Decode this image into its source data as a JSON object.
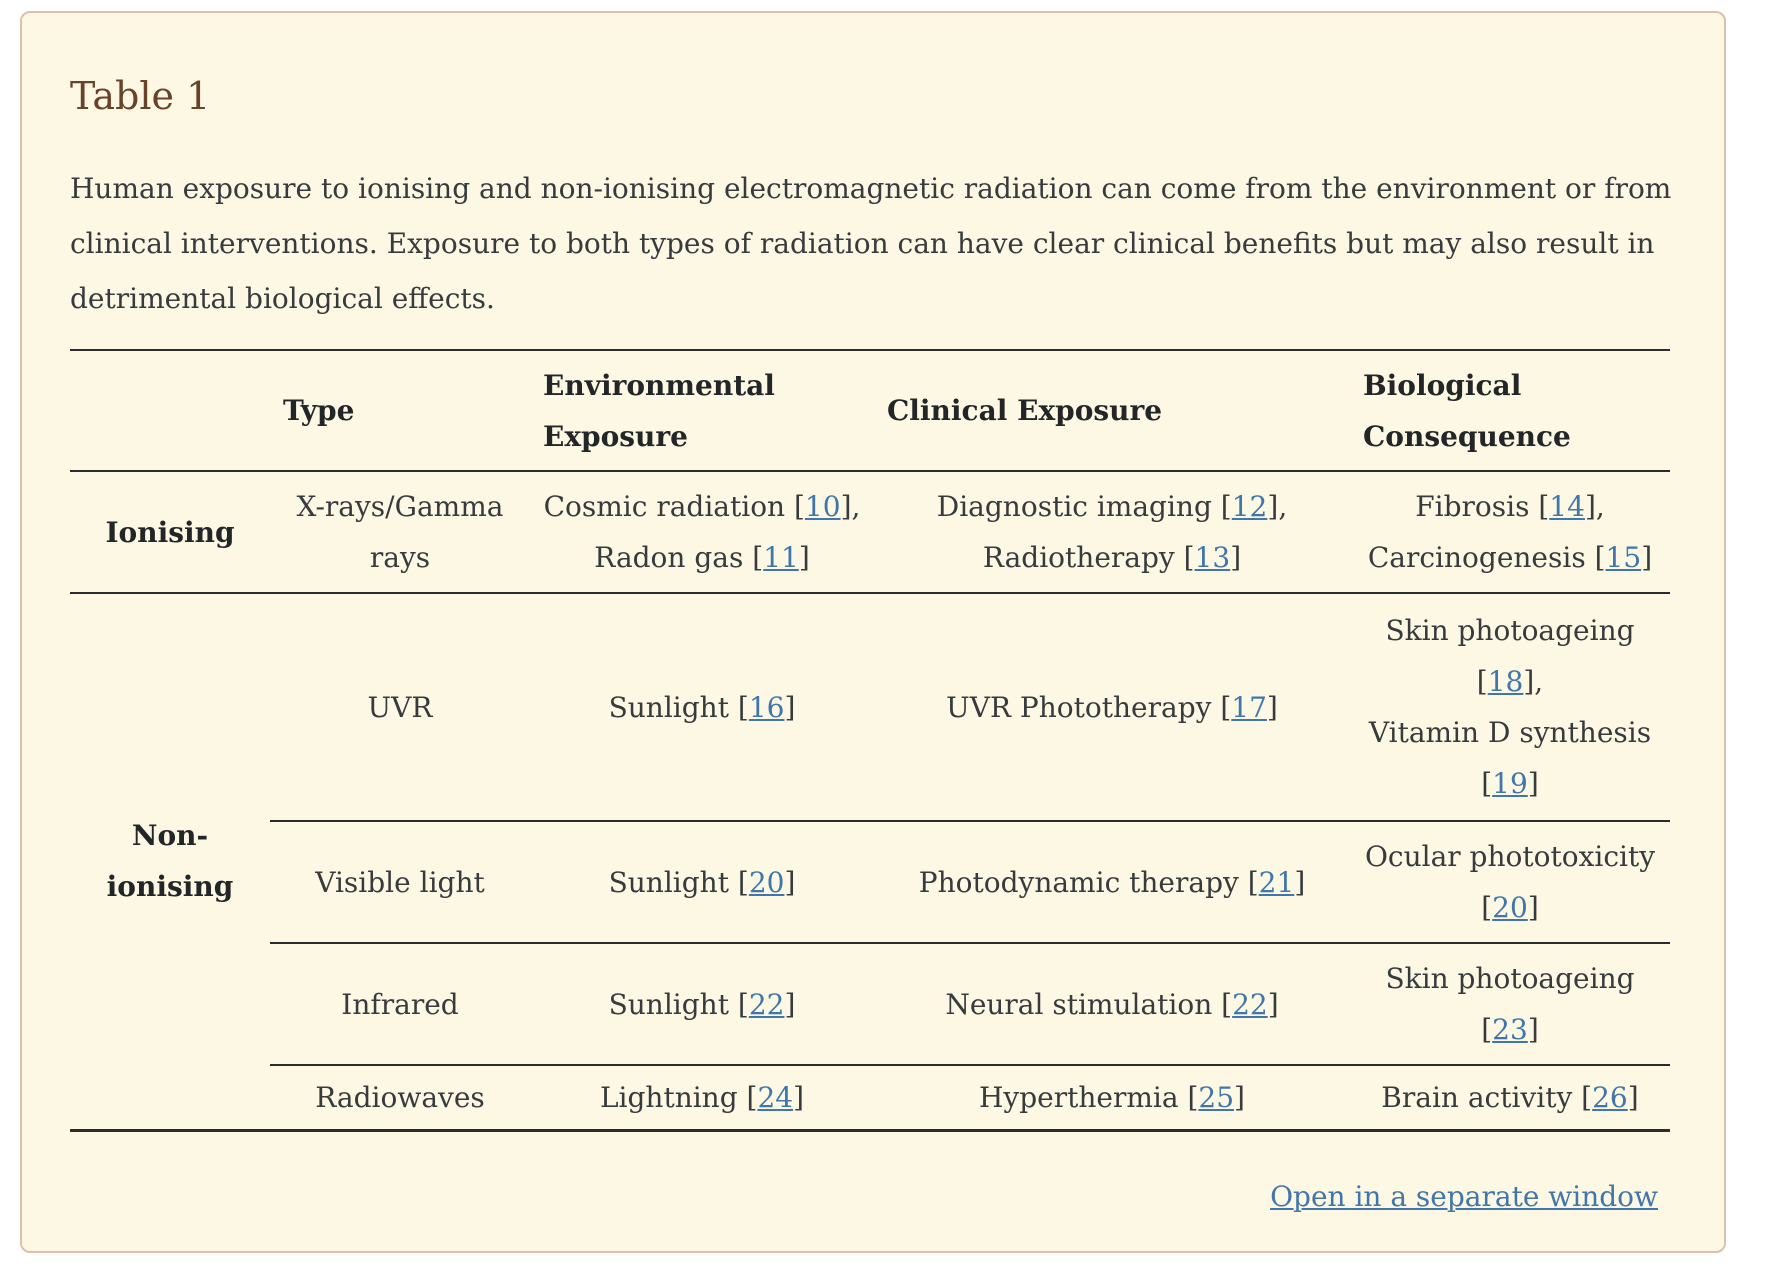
{
  "panel": {
    "title": "Table 1",
    "caption_lines": [
      "Human exposure to ionising and non-ionising electromagnetic radiation can come from the environment or from",
      "clinical interventions. Exposure to both types of radiation can have clear clinical benefits but may also result in",
      "detrimental biological effects."
    ],
    "open_link": "Open in a separate window"
  },
  "table": {
    "columns": [
      {
        "id": "row-group",
        "lines": [
          ""
        ]
      },
      {
        "id": "type",
        "lines": [
          "Type"
        ]
      },
      {
        "id": "environmental-exposure",
        "lines": [
          "Environmental",
          "Exposure"
        ]
      },
      {
        "id": "clinical-exposure",
        "lines": [
          "Clinical Exposure"
        ]
      },
      {
        "id": "biological-consequence",
        "lines": [
          "Biological",
          "Consequence"
        ]
      }
    ],
    "rows": [
      {
        "group_label": "Ionising",
        "group_lines": [
          "Ionising"
        ],
        "rowspan": 1,
        "cells": [
          [
            "X-rays/Gamma",
            "rays"
          ],
          [
            "Cosmic radiation [10],",
            "Radon gas [11]"
          ],
          [
            "Diagnostic imaging [12],",
            "Radiotherapy [13]"
          ],
          [
            "Fibrosis [14],",
            "Carcinogenesis [15]"
          ]
        ]
      },
      {
        "group_label": "Non-ionising",
        "group_lines": [
          "Non-",
          "ionising"
        ],
        "rowspan": 4,
        "cells": [
          [
            "UVR"
          ],
          [
            "Sunlight [16]"
          ],
          [
            "UVR Phototherapy [17]"
          ],
          [
            "Skin photoageing",
            "[18],",
            "Vitamin D synthesis",
            "[19]"
          ]
        ]
      },
      {
        "cells": [
          [
            "Visible light"
          ],
          [
            "Sunlight [20]"
          ],
          [
            "Photodynamic therapy [21]"
          ],
          [
            "Ocular phototoxicity",
            "[20]"
          ]
        ]
      },
      {
        "cells": [
          [
            "Infrared"
          ],
          [
            "Sunlight [22]"
          ],
          [
            "Neural stimulation [22]"
          ],
          [
            "Skin photoageing",
            "[23]"
          ]
        ]
      },
      {
        "cells": [
          [
            "Radiowaves"
          ],
          [
            "Lightning [24]"
          ],
          [
            "Hyperthermia [25]"
          ],
          [
            "Brain activity [26]"
          ]
        ]
      }
    ]
  },
  "colors": {
    "panel_bg": "#fcf8e3",
    "panel_border": "#ddc0ab",
    "title": "#6a4229",
    "text": "#373b3e",
    "link": "#4076ab",
    "rule": "#2a2c2e"
  }
}
